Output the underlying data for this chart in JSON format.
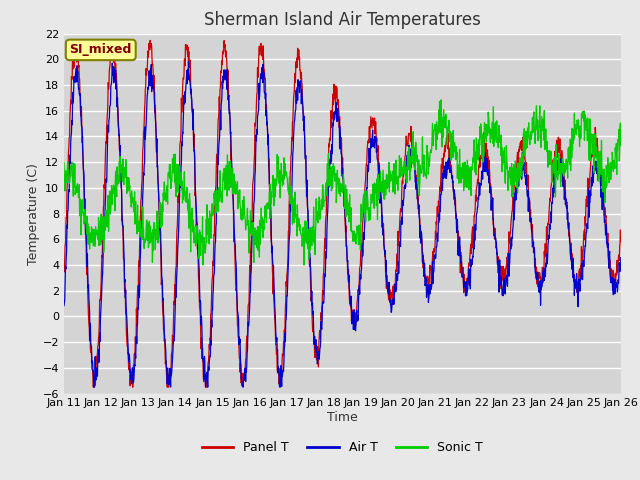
{
  "title": "Sherman Island Air Temperatures",
  "xlabel": "Time",
  "ylabel": "Temperature (C)",
  "ylim": [
    -6,
    22
  ],
  "yticks": [
    -6,
    -4,
    -2,
    0,
    2,
    4,
    6,
    8,
    10,
    12,
    14,
    16,
    18,
    20,
    22
  ],
  "x_labels": [
    "Jan 11",
    "Jan 12",
    "Jan 13",
    "Jan 14",
    "Jan 15",
    "Jan 16",
    "Jan 17",
    "Jan 18",
    "Jan 19",
    "Jan 20",
    "Jan 21",
    "Jan 22",
    "Jan 23",
    "Jan 24",
    "Jan 25",
    "Jan 26"
  ],
  "panel_color": "#cc0000",
  "air_color": "#0000cc",
  "sonic_color": "#00cc00",
  "fig_bg": "#e8e8e8",
  "plot_bg": "#d8d8d8",
  "annotation_text": "SI_mixed",
  "annotation_color": "#800000",
  "annotation_bg": "#ffff99",
  "annotation_edge": "#808000",
  "legend_labels": [
    "Panel T",
    "Air T",
    "Sonic T"
  ],
  "title_fontsize": 12,
  "axis_fontsize": 9,
  "tick_fontsize": 8
}
